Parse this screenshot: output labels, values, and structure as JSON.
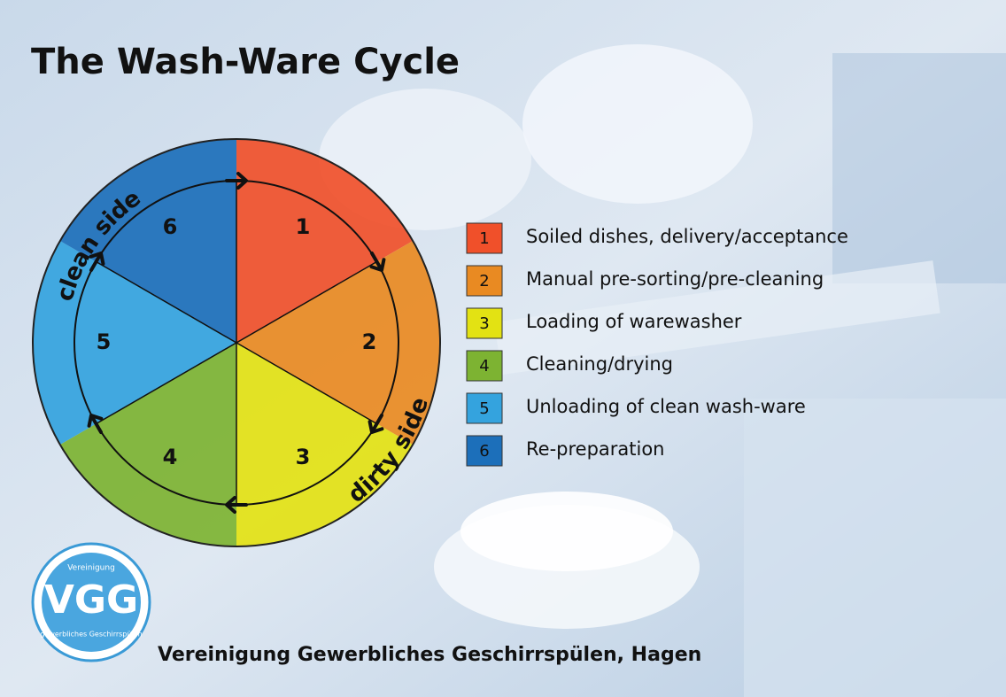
{
  "title": "The Wash-Ware Cycle",
  "cycle": {
    "segments": [
      {
        "number": "1",
        "label": "Soiled dishes, delivery/acceptance",
        "color": "#f0502a"
      },
      {
        "number": "2",
        "label": "Manual pre-sorting/pre-cleaning",
        "color": "#e98a22"
      },
      {
        "number": "3",
        "label": "Loading of warewasher",
        "color": "#e3e213"
      },
      {
        "number": "4",
        "label": "Cleaning/drying",
        "color": "#7db332"
      },
      {
        "number": "5",
        "label": "Unloading of clean wash-ware",
        "color": "#34a3de"
      },
      {
        "number": "6",
        "label": "Re-preparation",
        "color": "#1c6fba"
      }
    ],
    "clean_side": "clean side",
    "dirty_side": "dirty side"
  },
  "logo": {
    "top": "Vereinigung",
    "main": "VGG",
    "bottom": "gewerbliches Geschirrspülen"
  },
  "footer": "Vereinigung Gewerbliches Geschirrspülen, Hagen"
}
